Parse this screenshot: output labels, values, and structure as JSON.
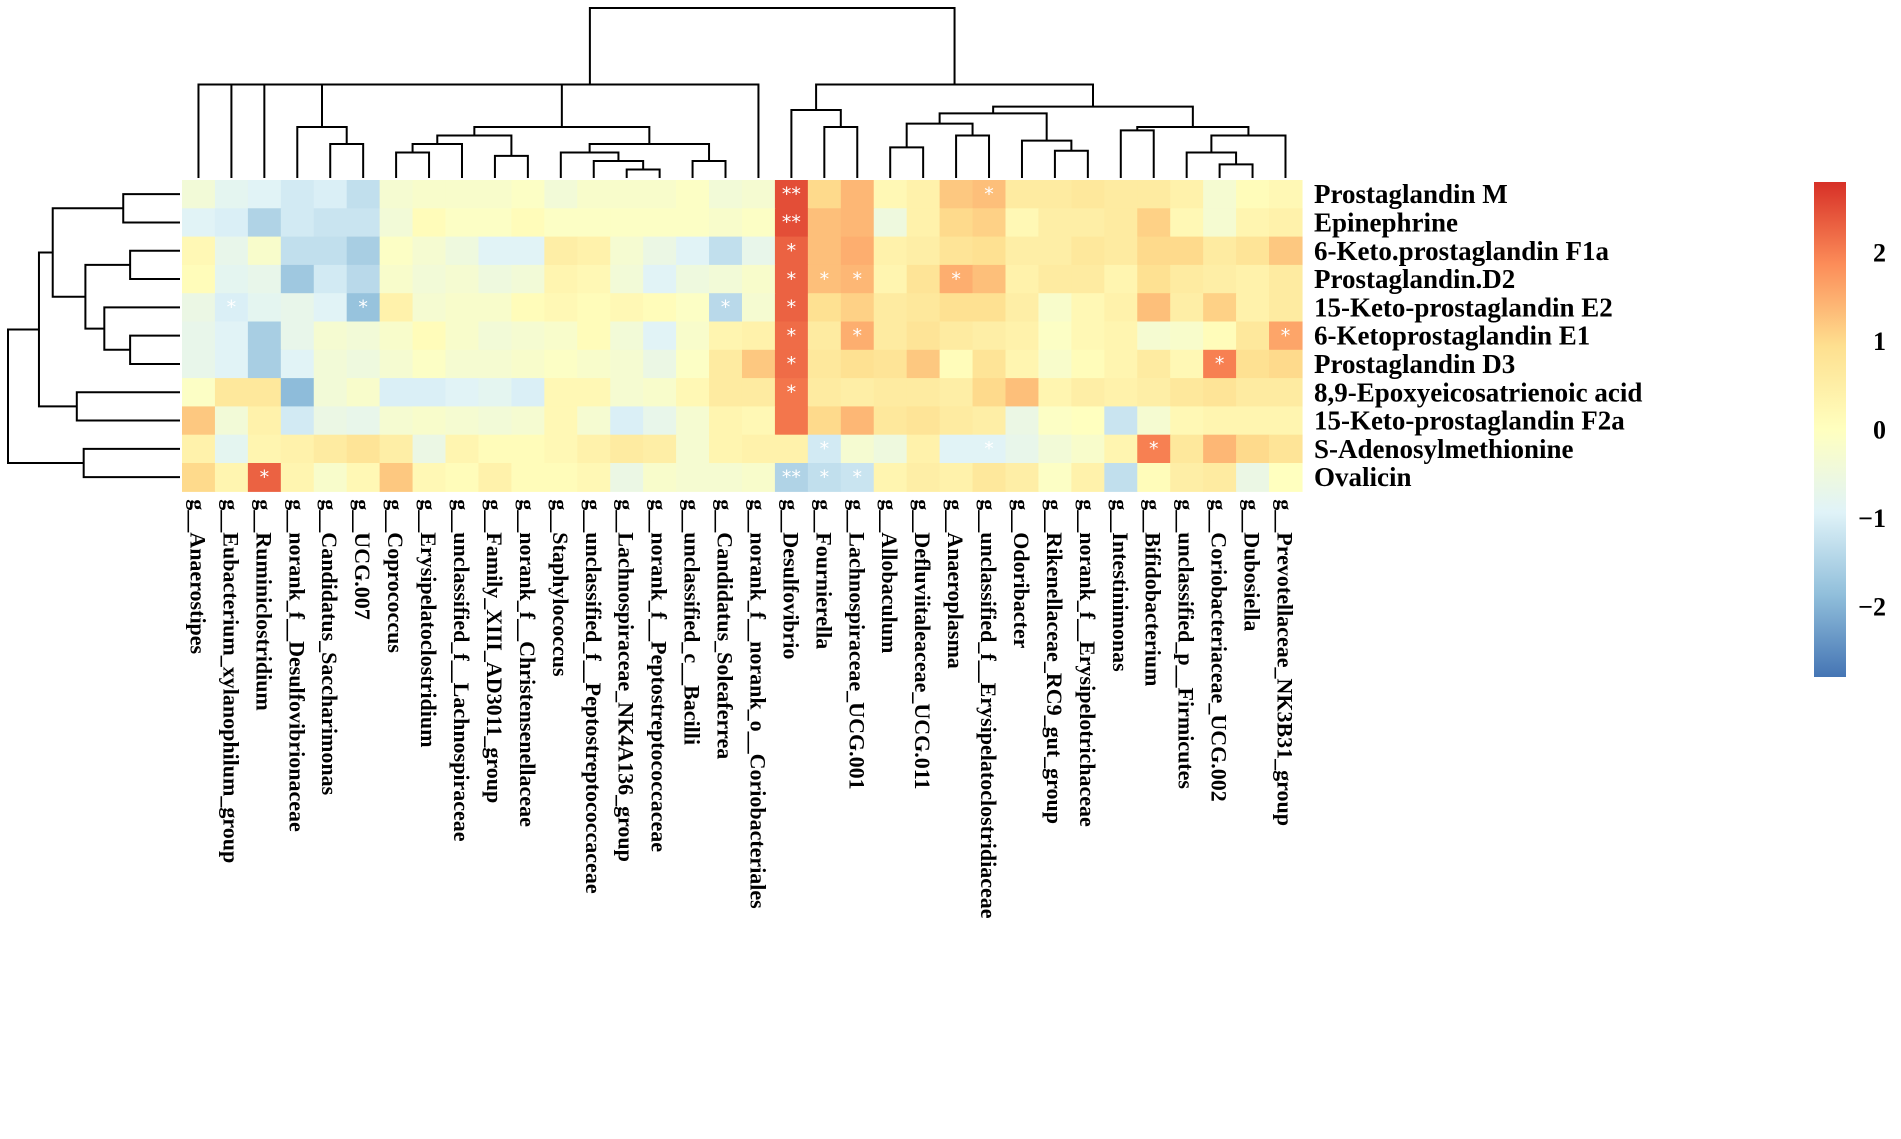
{
  "chart_data": {
    "type": "heatmap",
    "rows": [
      "Prostaglandin M",
      "Epinephrine",
      "6-Keto.prostaglandin F1a",
      "Prostaglandin.D2",
      "15-Keto-prostaglandin E2",
      "6-Ketoprostaglandin E1",
      "Prostaglandin D3",
      "8,9-Epoxyeicosatrienoic acid",
      "15-Keto-prostaglandin F2a",
      "S-Adenosylmethionine",
      "Ovalicin"
    ],
    "columns": [
      "g__Anaerostipes",
      "g__Eubacterium_xylanophilum_group",
      "g__Ruminiclostridium",
      "g__norank_f__Desulfovibrionaceae",
      "g__Candidatus_Saccharimonas",
      "g__UCG.007",
      "g__Coprococcus",
      "g__Erysipelatoclostridium",
      "g__unclassified_f__Lachnospiraceae",
      "g__Family_XIII_AD3011_group",
      "g__norank_f__Christensenellaceae",
      "g__Staphylococcus",
      "g__unclassified_f__Peptostreptococcaceae",
      "g__Lachnospiraceae_NK4A136_group",
      "g__norank_f__Peptostreptococcaceae",
      "g__unclassified_c__Bacilli",
      "g__Candidatus_Soleaferrea",
      "g__norank_f__norank_o__Coriobacteriales",
      "g__Desulfovibrio",
      "g__Fournierella",
      "g__Lachnospiraceae_UCG.001",
      "g__Allobaculum",
      "g__Defluviitaleaceae_UCG.011",
      "g__Anaeroplasma",
      "g__unclassified_f__Erysipelatoclostridiaceae",
      "g__Odoribacter",
      "g__Rikenellaceae_RC9_gut_group",
      "g__norank_f__Erysipelotrichaceae",
      "g__Intestinimonas",
      "g__Bifidobacterium",
      "g__unclassified_p__Firmicutes",
      "g__Coriobacteriaceae_UCG.002",
      "g__Dubosiella",
      "g__Prevotellaceae_NK3B31_group"
    ],
    "values": [
      [
        -0.4,
        -0.8,
        -0.9,
        -1.1,
        -1.0,
        -1.3,
        -0.3,
        -0.2,
        -0.2,
        -0.2,
        -0.1,
        -0.4,
        -0.2,
        -0.2,
        -0.2,
        -0.1,
        -0.4,
        -0.3,
        2.5,
        1.0,
        1.4,
        0.2,
        0.4,
        1.2,
        1.3,
        0.6,
        0.6,
        0.7,
        0.6,
        0.6,
        0.4,
        -0.3,
        0.1,
        0.2
      ],
      [
        -0.9,
        -1.0,
        -1.5,
        -1.1,
        -1.2,
        -1.2,
        -0.4,
        0.1,
        -0.1,
        -0.1,
        0.1,
        -0.1,
        -0.1,
        -0.1,
        -0.1,
        -0.1,
        -0.2,
        -0.1,
        2.5,
        1.3,
        1.4,
        -0.5,
        0.4,
        1.0,
        1.1,
        0.2,
        0.5,
        0.5,
        0.6,
        1.1,
        0.2,
        -0.3,
        0.3,
        0.4
      ],
      [
        0.2,
        -0.7,
        -0.2,
        -1.3,
        -1.3,
        -1.6,
        -0.1,
        -0.3,
        -0.5,
        -0.9,
        -0.9,
        0.5,
        0.4,
        -0.3,
        -0.6,
        -0.9,
        -1.3,
        -0.7,
        2.3,
        1.3,
        1.5,
        0.4,
        0.5,
        0.8,
        0.9,
        0.5,
        0.5,
        0.7,
        0.6,
        1.0,
        1.0,
        0.6,
        0.8,
        1.2
      ],
      [
        0.1,
        -0.8,
        -0.7,
        -1.7,
        -1.1,
        -1.4,
        -0.2,
        -0.4,
        -0.3,
        -0.5,
        -0.4,
        0.3,
        0.2,
        -0.4,
        -0.9,
        -0.5,
        -0.4,
        -0.2,
        2.3,
        1.3,
        1.4,
        0.3,
        0.8,
        1.5,
        1.3,
        0.4,
        0.6,
        0.6,
        0.3,
        0.9,
        0.6,
        0.5,
        0.4,
        0.6
      ],
      [
        -0.6,
        -1.0,
        -0.8,
        -0.7,
        -0.9,
        -1.8,
        0.4,
        -0.3,
        -0.2,
        -0.2,
        0.1,
        0.2,
        0.1,
        0.2,
        0.1,
        -0.1,
        -1.4,
        -0.3,
        2.3,
        0.9,
        1.1,
        0.6,
        0.7,
        0.9,
        0.9,
        0.5,
        -0.2,
        0.2,
        0.4,
        1.3,
        0.5,
        1.1,
        0.4,
        0.6
      ],
      [
        -0.7,
        -0.9,
        -1.6,
        -0.7,
        -0.3,
        -0.4,
        -0.2,
        0.1,
        -0.2,
        -0.4,
        -0.3,
        -0.2,
        0.1,
        -0.4,
        -0.9,
        -0.2,
        0.3,
        0.4,
        2.2,
        0.6,
        1.5,
        0.6,
        0.8,
        0.6,
        0.5,
        0.4,
        -0.1,
        0.2,
        0.3,
        -0.3,
        -0.2,
        0.1,
        0.7,
        1.6
      ],
      [
        -0.7,
        -0.9,
        -1.6,
        -0.9,
        -0.4,
        -0.5,
        -0.3,
        -0.1,
        -0.3,
        -0.3,
        -0.2,
        -0.1,
        -0.2,
        -0.3,
        -0.6,
        -0.1,
        0.6,
        1.2,
        2.2,
        0.7,
        0.9,
        0.8,
        1.2,
        0.1,
        0.8,
        0.3,
        -0.2,
        0.1,
        0.3,
        0.6,
        0.2,
        2.0,
        0.9,
        1.0
      ],
      [
        -0.1,
        0.7,
        0.7,
        -1.9,
        -0.4,
        -0.2,
        -1.0,
        -1.0,
        -0.9,
        -0.8,
        -1.0,
        0.2,
        0.2,
        -0.3,
        -0.2,
        0.2,
        0.6,
        0.6,
        2.1,
        0.6,
        0.5,
        0.6,
        0.6,
        0.5,
        1.0,
        1.3,
        0.3,
        0.5,
        0.4,
        0.5,
        0.7,
        0.8,
        0.6,
        0.6
      ],
      [
        1.2,
        -0.4,
        0.4,
        -1.1,
        -0.6,
        -0.7,
        -0.3,
        -0.2,
        -0.3,
        -0.4,
        -0.3,
        0.2,
        -0.3,
        -1.0,
        -0.7,
        -0.3,
        0.3,
        0.2,
        2.1,
        1.0,
        1.4,
        0.7,
        0.8,
        0.6,
        0.5,
        -0.6,
        -0.1,
        0.0,
        -1.2,
        -0.3,
        0.2,
        0.3,
        0.3,
        0.3
      ],
      [
        0.4,
        -0.8,
        0.3,
        0.4,
        0.6,
        0.8,
        0.5,
        -0.6,
        0.3,
        0.1,
        0.1,
        0.2,
        0.4,
        0.6,
        0.5,
        -0.3,
        0.3,
        0.4,
        0.4,
        -1.1,
        -0.3,
        -0.5,
        0.4,
        -0.9,
        -0.9,
        -0.7,
        -0.4,
        -0.2,
        0.3,
        2.0,
        0.7,
        1.4,
        1.0,
        0.8
      ],
      [
        1.0,
        0.3,
        2.3,
        0.3,
        -0.2,
        0.2,
        1.2,
        0.2,
        0.1,
        0.4,
        0.1,
        0.1,
        0.2,
        -0.6,
        -0.2,
        -0.3,
        -0.3,
        -0.2,
        -1.5,
        -1.3,
        -1.2,
        0.3,
        0.5,
        0.4,
        0.7,
        0.5,
        -0.1,
        0.4,
        -1.3,
        0.1,
        0.5,
        0.6,
        -0.6,
        0.0
      ]
    ],
    "annotations": [
      {
        "row": 0,
        "col": 18,
        "label": "**"
      },
      {
        "row": 0,
        "col": 24,
        "label": "*"
      },
      {
        "row": 1,
        "col": 18,
        "label": "**"
      },
      {
        "row": 2,
        "col": 18,
        "label": "*"
      },
      {
        "row": 3,
        "col": 18,
        "label": "*"
      },
      {
        "row": 3,
        "col": 19,
        "label": "*"
      },
      {
        "row": 3,
        "col": 20,
        "label": "*"
      },
      {
        "row": 3,
        "col": 23,
        "label": "*"
      },
      {
        "row": 4,
        "col": 1,
        "label": "*"
      },
      {
        "row": 4,
        "col": 5,
        "label": "*"
      },
      {
        "row": 4,
        "col": 16,
        "label": "*"
      },
      {
        "row": 4,
        "col": 18,
        "label": "*"
      },
      {
        "row": 5,
        "col": 18,
        "label": "*"
      },
      {
        "row": 5,
        "col": 20,
        "label": "*"
      },
      {
        "row": 5,
        "col": 33,
        "label": "*"
      },
      {
        "row": 6,
        "col": 18,
        "label": "*"
      },
      {
        "row": 6,
        "col": 31,
        "label": "*"
      },
      {
        "row": 7,
        "col": 18,
        "label": "*"
      },
      {
        "row": 9,
        "col": 19,
        "label": "*"
      },
      {
        "row": 9,
        "col": 24,
        "label": "*"
      },
      {
        "row": 9,
        "col": 29,
        "label": "*"
      },
      {
        "row": 10,
        "col": 2,
        "label": "*"
      },
      {
        "row": 10,
        "col": 18,
        "label": "**"
      },
      {
        "row": 10,
        "col": 19,
        "label": "*"
      },
      {
        "row": 10,
        "col": 20,
        "label": "*"
      }
    ],
    "color_range": [
      -2.8,
      2.8
    ],
    "colors": [
      "#4575b4",
      "#91bfdb",
      "#e0f3f8",
      "#ffffbf",
      "#fee090",
      "#fc8d59",
      "#d73027"
    ],
    "legend_ticks": [
      {
        "value": 2,
        "label": "2"
      },
      {
        "value": 1,
        "label": "1"
      },
      {
        "value": 0,
        "label": "0"
      },
      {
        "value": -1,
        "label": "−1"
      },
      {
        "value": -2,
        "label": "−2"
      }
    ],
    "legend_position": "right",
    "col_dendrogram": [
      [
        0,
        1,
        0.55,
        0.45
      ],
      [
        2,
        34,
        0.15,
        0.25
      ],
      [
        4,
        5,
        0.12,
        0.2
      ],
      [
        3,
        36,
        0.3,
        0.3
      ],
      [
        35,
        37,
        0.4,
        0.4
      ],
      [
        6,
        7,
        0.15,
        0.15
      ],
      [
        8,
        39,
        0.2,
        0.2
      ],
      [
        9,
        10,
        0.13,
        0.13
      ],
      [
        40,
        41,
        0.25,
        0.25
      ],
      [
        13,
        14,
        0.05,
        0.05
      ],
      [
        12,
        43,
        0.1,
        0.1
      ],
      [
        11,
        44,
        0.15,
        0.15
      ],
      [
        15,
        16,
        0.1,
        0.1
      ],
      [
        45,
        46,
        0.2,
        0.2
      ],
      [
        42,
        47,
        0.3,
        0.3
      ],
      [
        38,
        48,
        0.45,
        0.45
      ],
      [
        17,
        49,
        0.5,
        0.5
      ],
      [
        19,
        20,
        0.3,
        0.3
      ],
      [
        18,
        51,
        0.4,
        0.4
      ],
      [
        21,
        22,
        0.18,
        0.18
      ],
      [
        23,
        24,
        0.25,
        0.25
      ],
      [
        53,
        54,
        0.32,
        0.32
      ],
      [
        26,
        27,
        0.16,
        0.16
      ],
      [
        25,
        56,
        0.22,
        0.22
      ],
      [
        55,
        57,
        0.38,
        0.38
      ],
      [
        28,
        29,
        0.28,
        0.28
      ],
      [
        31,
        32,
        0.08,
        0.08
      ],
      [
        30,
        60,
        0.15,
        0.15
      ],
      [
        61,
        33,
        0.25,
        0.25
      ],
      [
        59,
        62,
        0.3,
        0.3
      ],
      [
        58,
        63,
        0.42,
        0.42
      ],
      [
        52,
        64,
        0.55,
        0.55
      ],
      [
        50,
        65,
        1.0,
        1.0
      ]
    ],
    "row_dendrogram": [
      [
        0,
        1,
        0.33,
        0.33
      ],
      [
        2,
        3,
        0.29,
        0.29
      ],
      [
        5,
        6,
        0.29,
        0.29
      ],
      [
        4,
        13,
        0.44,
        0.44
      ],
      [
        12,
        14,
        0.55,
        0.55
      ],
      [
        11,
        15,
        0.74,
        0.74
      ],
      [
        7,
        8,
        0.6,
        0.6
      ],
      [
        16,
        17,
        0.82,
        0.82
      ],
      [
        9,
        10,
        0.56,
        0.56
      ],
      [
        18,
        19,
        1.0,
        1.0
      ]
    ]
  }
}
